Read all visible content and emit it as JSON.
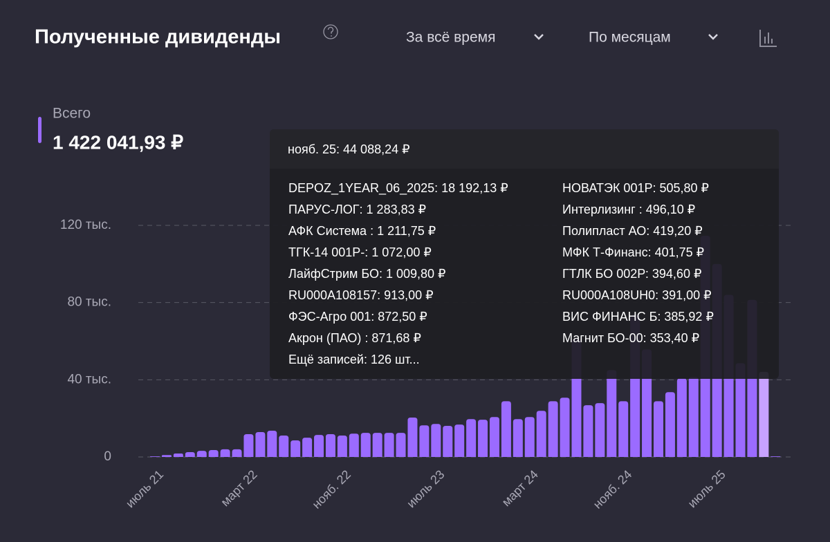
{
  "header": {
    "title": "Полученные дивиденды",
    "period": "За всё время",
    "grouping": "По месяцам"
  },
  "total": {
    "label": "Всего",
    "value": "1 422 041,93 ₽"
  },
  "tooltip": {
    "header": "нояб. 25: 44 088,24 ₽",
    "left": [
      "DEPOZ_1YEAR_06_2025: 18 192,13 ₽",
      "ПАРУС-ЛОГ: 1 283,83 ₽",
      "АФК Система : 1 211,75 ₽",
      "ТГК-14 001Р-: 1 072,00 ₽",
      "ЛайфСтрим БО: 1 009,80 ₽",
      "RU000A108157: 913,00 ₽",
      "ФЭС-Агро 001: 872,50 ₽",
      "Акрон (ПАО) : 871,68 ₽"
    ],
    "right": [
      "НОВАТЭК 001P: 505,80 ₽",
      "Интерлизинг : 496,10 ₽",
      "Полипласт АО: 419,20 ₽",
      "МФК Т-Финанс: 401,75 ₽",
      "ГТЛК БО 002Р: 394,60 ₽",
      "RU000A108UH0: 391,00 ₽",
      "ВИС ФИНАНС Б: 385,92 ₽",
      "Магнит БО-00: 353,40 ₽"
    ],
    "more": "Ещё записей: 126 шт..."
  },
  "chart_data": {
    "type": "bar",
    "categories": [
      "июль 21",
      null,
      null,
      null,
      null,
      null,
      null,
      null,
      "март 22",
      null,
      null,
      null,
      null,
      null,
      null,
      null,
      "нояб. 22",
      null,
      null,
      null,
      null,
      null,
      null,
      null,
      "июль 23",
      null,
      null,
      null,
      null,
      null,
      null,
      null,
      "март 24",
      null,
      null,
      null,
      null,
      null,
      null,
      null,
      "нояб. 24",
      null,
      null,
      null,
      null,
      null,
      null,
      null,
      "июль 25",
      null,
      null,
      null,
      null,
      null
    ],
    "values": [
      300,
      1000,
      1800,
      2500,
      3200,
      3600,
      4000,
      4000,
      11800,
      12900,
      13600,
      11100,
      8600,
      10000,
      11400,
      11800,
      11100,
      12100,
      12500,
      12500,
      12500,
      12500,
      20400,
      16400,
      17100,
      16100,
      16800,
      19600,
      19300,
      20700,
      28900,
      19600,
      20700,
      23900,
      28900,
      30700,
      61000,
      26800,
      27900,
      45000,
      28900,
      73600,
      55700,
      28900,
      33600,
      40700,
      41400,
      114600,
      100000,
      84000,
      48600,
      81400,
      44088.24,
      300
    ],
    "color": "#9b6bff",
    "highlight_color": "#c8a2ff",
    "highlight": [
      52
    ],
    "ylim": [
      0,
      120000
    ],
    "yticks": [
      0,
      {
        "value": 40000,
        "label": "40 тыс."
      },
      {
        "value": 80000,
        "label": "80 тыс."
      },
      {
        "value": 120000,
        "label": "120 тыс."
      }
    ],
    "grid": true
  }
}
